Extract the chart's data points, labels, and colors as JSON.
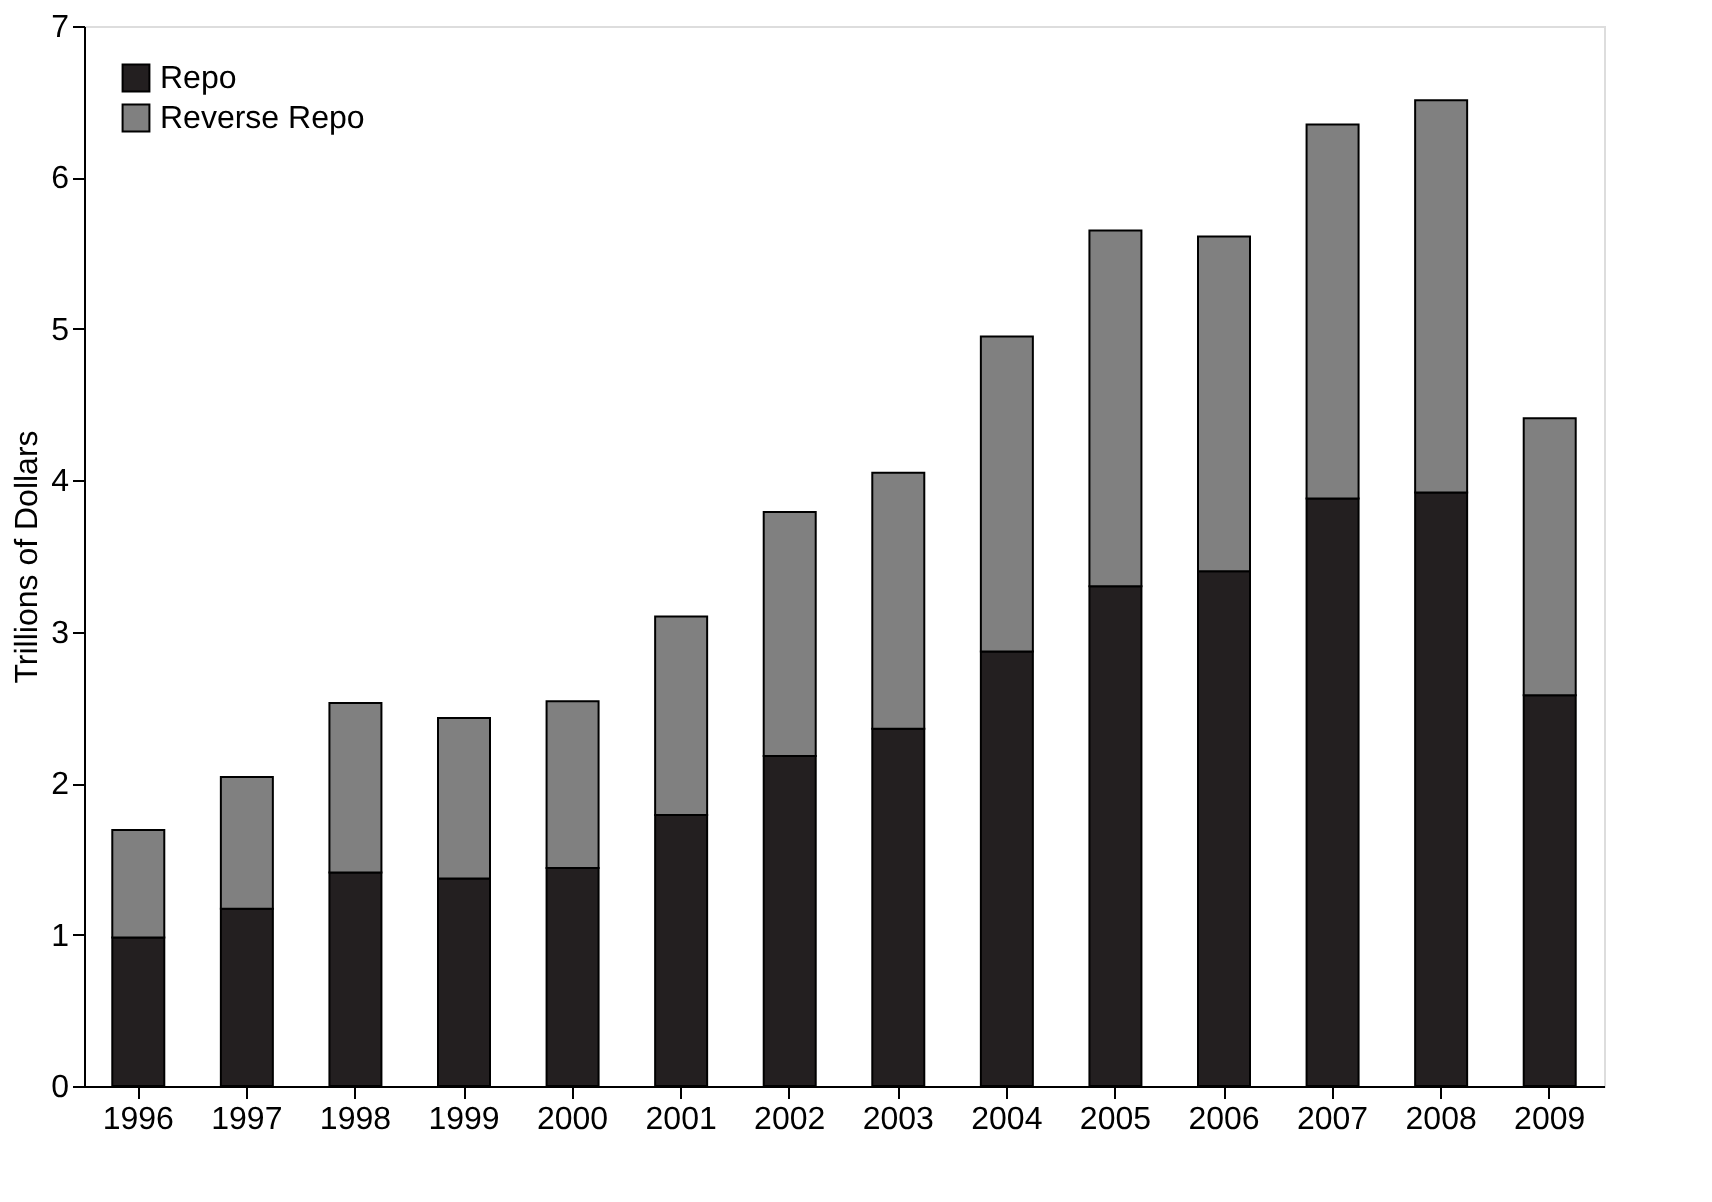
{
  "chart_data": {
    "type": "bar",
    "stacked": true,
    "ylabel": "Trillions  of Dollars",
    "categories": [
      "1996",
      "1997",
      "1998",
      "1999",
      "2000",
      "2001",
      "2002",
      "2003",
      "2004",
      "2005",
      "2006",
      "2007",
      "2008",
      "2009"
    ],
    "series": [
      {
        "name": "Repo",
        "color": "#231f20",
        "values": [
          0.98,
          1.17,
          1.41,
          1.37,
          1.44,
          1.79,
          2.18,
          2.36,
          2.87,
          3.3,
          3.4,
          3.88,
          3.92,
          2.58
        ]
      },
      {
        "name": "Reverse Repo",
        "color": "#808080",
        "values": [
          0.71,
          0.87,
          1.12,
          1.06,
          1.1,
          1.31,
          1.61,
          1.69,
          2.08,
          2.35,
          2.21,
          2.47,
          2.59,
          1.83
        ]
      }
    ],
    "ylim": [
      0,
      7
    ],
    "yticks": [
      0,
      1,
      2,
      3,
      4,
      5,
      6,
      7
    ],
    "grid": false,
    "legend": "top left"
  }
}
